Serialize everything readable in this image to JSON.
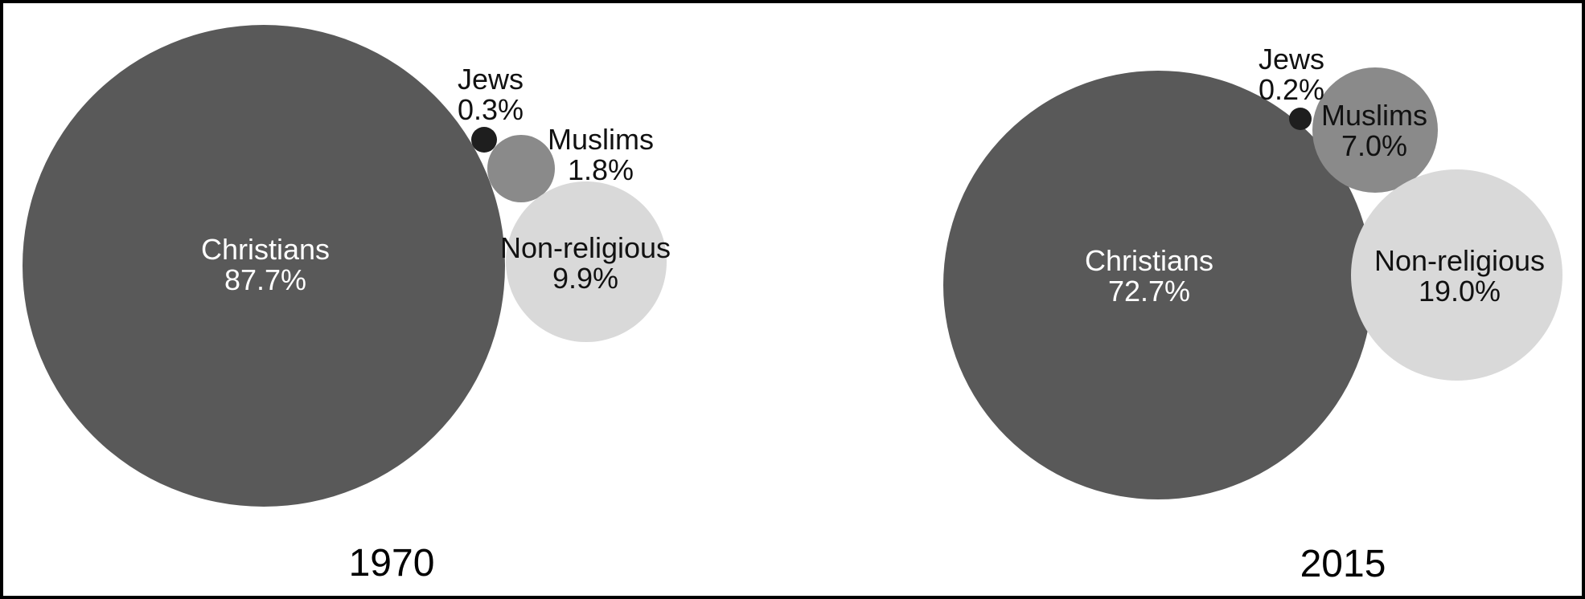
{
  "figure": {
    "background": "#ffffff",
    "border_color": "#000000",
    "text_color": "#111111",
    "inside_dark_text_color": "#ffffff"
  },
  "chart_data": [
    {
      "type": "bubble",
      "title": "1970",
      "unit": "percent",
      "legend": false,
      "label_style": "direct",
      "points": [
        {
          "label": "Christians",
          "value": 87.7,
          "display": "87.7%",
          "color": "#595959",
          "label_placement": "inside",
          "text_color": "#ffffff"
        },
        {
          "label": "Jews",
          "value": 0.3,
          "display": "0.3%",
          "color": "#1e1e1e",
          "label_placement": "above",
          "text_color": "#111111"
        },
        {
          "label": "Muslims",
          "value": 1.8,
          "display": "1.8%",
          "color": "#8a8a8a",
          "label_placement": "right",
          "text_color": "#111111"
        },
        {
          "label": "Non-religious",
          "value": 9.9,
          "display": "9.9%",
          "color": "#d9d9d9",
          "label_placement": "inside",
          "text_color": "#111111"
        }
      ]
    },
    {
      "type": "bubble",
      "title": "2015",
      "unit": "percent",
      "legend": false,
      "label_style": "direct",
      "points": [
        {
          "label": "Christians",
          "value": 72.7,
          "display": "72.7%",
          "color": "#595959",
          "label_placement": "inside",
          "text_color": "#ffffff"
        },
        {
          "label": "Jews",
          "value": 0.2,
          "display": "0.2%",
          "color": "#1e1e1e",
          "label_placement": "above",
          "text_color": "#111111"
        },
        {
          "label": "Muslims",
          "value": 7.0,
          "display": "7.0%",
          "color": "#8a8a8a",
          "label_placement": "inside",
          "text_color": "#111111"
        },
        {
          "label": "Non-religious",
          "value": 19.0,
          "display": "19.0%",
          "color": "#d9d9d9",
          "label_placement": "inside",
          "text_color": "#111111"
        }
      ]
    }
  ]
}
